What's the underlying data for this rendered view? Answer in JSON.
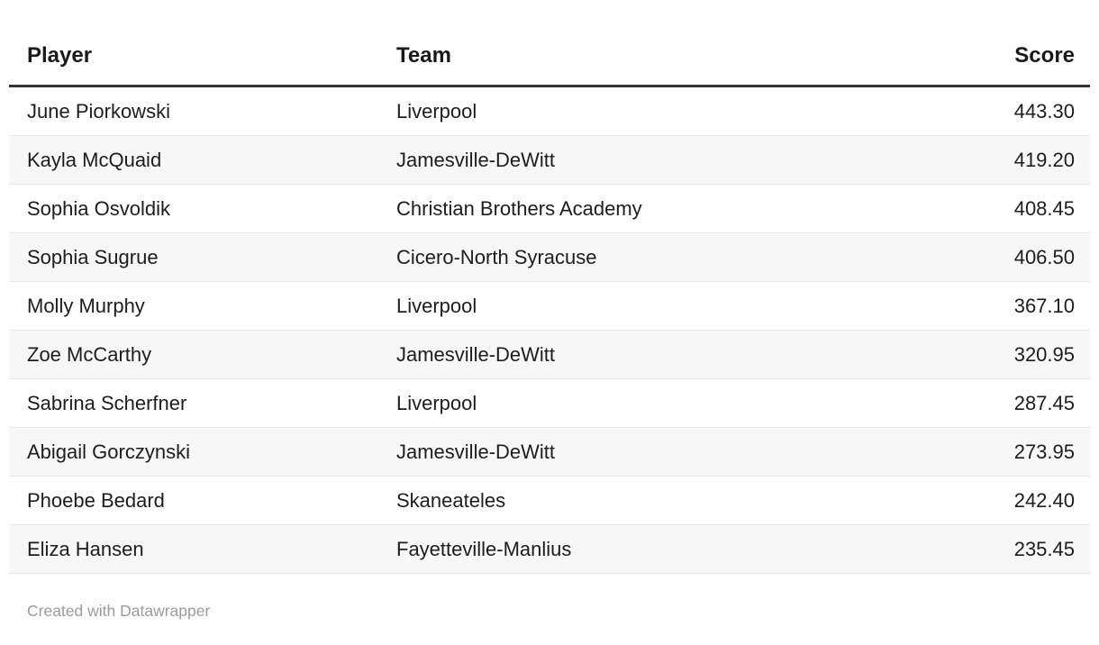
{
  "chart_data": {
    "type": "table",
    "columns": [
      "Player",
      "Team",
      "Score"
    ],
    "column_align": [
      "left",
      "left",
      "right"
    ],
    "striped": true,
    "rows": [
      [
        "June Piorkowski",
        "Liverpool",
        "443.30"
      ],
      [
        "Kayla McQuaid",
        "Jamesville-DeWitt",
        "419.20"
      ],
      [
        "Sophia Osvoldik",
        "Christian Brothers Academy",
        "408.45"
      ],
      [
        "Sophia Sugrue",
        "Cicero-North Syracuse",
        "406.50"
      ],
      [
        "Molly Murphy",
        "Liverpool",
        "367.10"
      ],
      [
        "Zoe McCarthy",
        "Jamesville-DeWitt",
        "320.95"
      ],
      [
        "Sabrina Scherfner",
        "Liverpool",
        "287.45"
      ],
      [
        "Abigail Gorczynski",
        "Jamesville-DeWitt",
        "273.95"
      ],
      [
        "Phoebe Bedard",
        "Skaneateles",
        "242.40"
      ],
      [
        "Eliza Hansen",
        "Fayetteville-Manlius",
        "235.45"
      ]
    ]
  },
  "footer": {
    "credit": "Created with Datawrapper"
  },
  "colors": {
    "header_rule": "#333333",
    "row_stripe": "#f7f7f7",
    "row_border": "#e8e8e8",
    "text": "#1d1d1d",
    "credit_text": "#9b9b9b"
  }
}
